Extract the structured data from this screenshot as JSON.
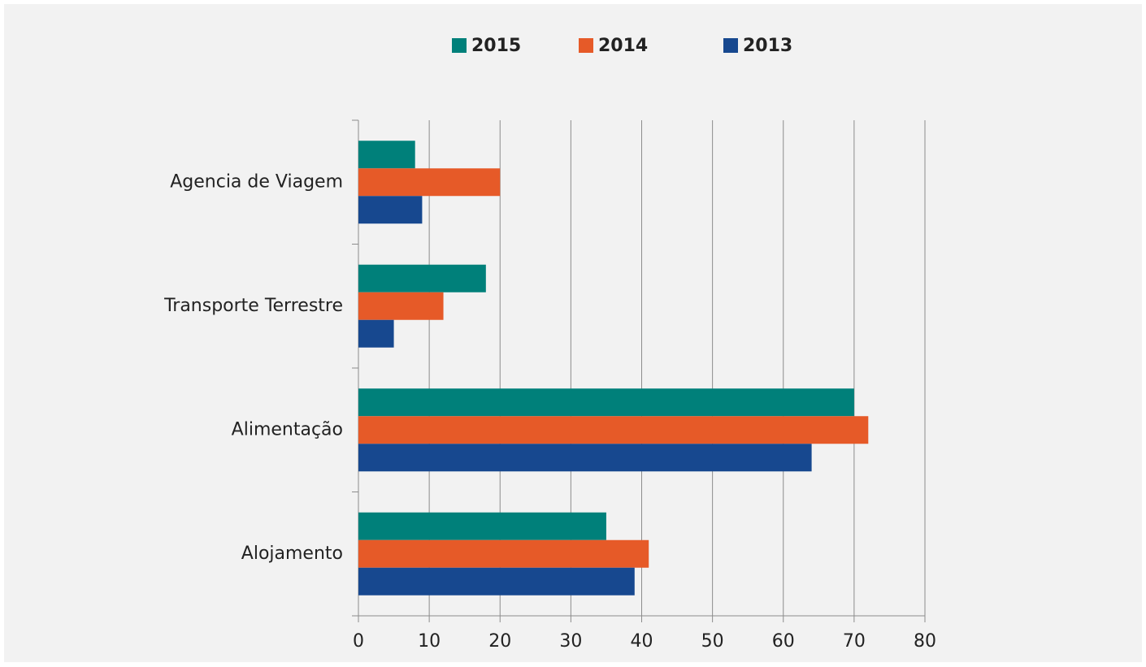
{
  "chart_data": {
    "type": "barh",
    "categories": [
      "Agencia de Viagem",
      "Transporte Terrestre",
      "Alimentação",
      "Alojamento"
    ],
    "series": [
      {
        "name": "2015",
        "color": "#00807a",
        "values": [
          8,
          18,
          70,
          35
        ]
      },
      {
        "name": "2014",
        "color": "#e65a28",
        "values": [
          20,
          12,
          72,
          41
        ]
      },
      {
        "name": "2013",
        "color": "#17488f",
        "values": [
          9,
          5,
          64,
          39
        ]
      }
    ],
    "xlim": [
      0,
      80
    ],
    "xticks": [
      0,
      10,
      20,
      30,
      40,
      50,
      60,
      70,
      80
    ],
    "grid": true,
    "legend": "top"
  }
}
